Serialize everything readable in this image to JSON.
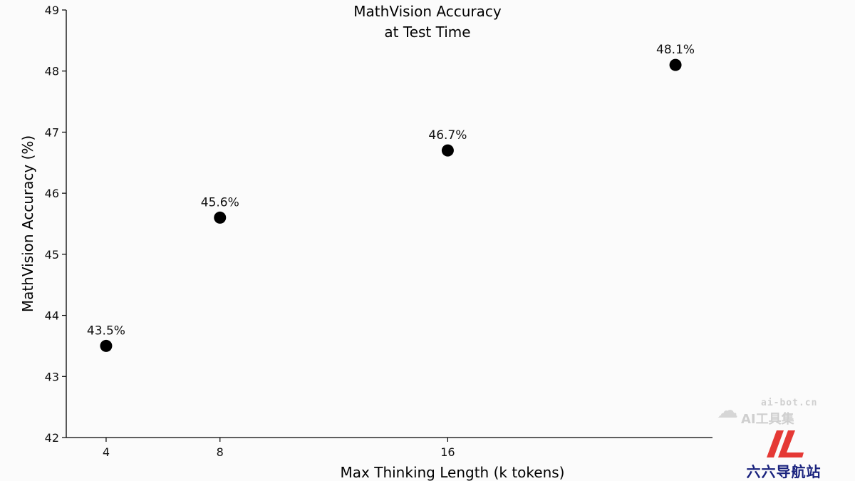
{
  "chart_data": {
    "type": "scatter",
    "title": [
      "MathVision Accuracy",
      "at Test Time"
    ],
    "xlabel": "Max Thinking Length (k tokens)",
    "ylabel": "MathVision Accuracy (%)",
    "xlim": [
      2.6,
      25.3
    ],
    "ylim": [
      42,
      49
    ],
    "xticks": [
      4,
      8,
      16
    ],
    "yticks": [
      42,
      43,
      44,
      45,
      46,
      47,
      48,
      49
    ],
    "points": [
      {
        "x": 4,
        "y": 43.5,
        "label": "43.5%"
      },
      {
        "x": 8,
        "y": 45.6,
        "label": "45.6%"
      },
      {
        "x": 16,
        "y": 46.7,
        "label": "46.7%"
      },
      {
        "x": 24,
        "y": 48.1,
        "label": "48.1%"
      }
    ],
    "marker_color": "#000000",
    "grid": false,
    "legend": "none"
  },
  "watermark": {
    "site": "ai-bot.cn",
    "name": "AI工具集",
    "logo_text": "六六导航站",
    "logo_color": "#e53935"
  }
}
